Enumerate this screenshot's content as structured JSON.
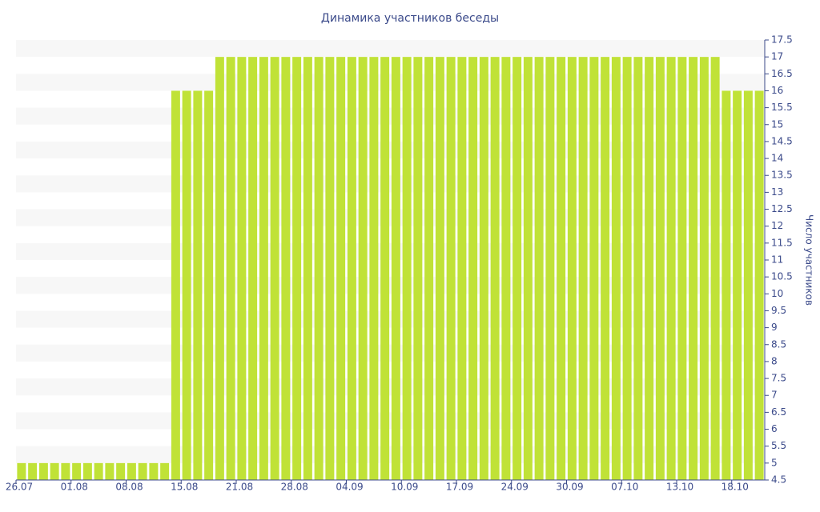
{
  "chart_data": {
    "type": "bar",
    "title": "Динамика участников беседы",
    "y_label": "Число участников",
    "categories": [
      "26.07",
      null,
      null,
      null,
      null,
      "01.08",
      null,
      null,
      null,
      null,
      "08.08",
      null,
      null,
      null,
      null,
      "15.08",
      null,
      null,
      null,
      null,
      "21.08",
      null,
      null,
      null,
      null,
      "28.08",
      null,
      null,
      null,
      null,
      "04.09",
      null,
      null,
      null,
      null,
      "10.09",
      null,
      null,
      null,
      null,
      "17.09",
      null,
      null,
      null,
      null,
      "24.09",
      null,
      null,
      null,
      null,
      "30.09",
      null,
      null,
      null,
      null,
      "07.10",
      null,
      null,
      null,
      null,
      "13.10",
      null,
      null,
      null,
      null,
      "18.10",
      null,
      null
    ],
    "values": [
      5,
      5,
      5,
      5,
      5,
      5,
      5,
      5,
      5,
      5,
      5,
      5,
      5,
      5,
      16,
      16,
      16,
      16,
      17,
      17,
      17,
      17,
      17,
      17,
      17,
      17,
      17,
      17,
      17,
      17,
      17,
      17,
      17,
      17,
      17,
      17,
      17,
      17,
      17,
      17,
      17,
      17,
      17,
      17,
      17,
      17,
      17,
      17,
      17,
      17,
      17,
      17,
      17,
      17,
      17,
      17,
      17,
      17,
      17,
      17,
      17,
      17,
      17,
      17,
      16,
      16,
      16,
      16
    ],
    "color": "#c0e237",
    "ylim": [
      4.5,
      17.5
    ],
    "yticks": [
      4.5,
      5,
      5.5,
      6,
      6.5,
      7,
      7.5,
      8,
      8.5,
      9,
      9.5,
      10,
      10.5,
      11,
      11.5,
      12,
      12.5,
      13,
      13.5,
      14,
      14.5,
      15,
      15.5,
      16,
      16.5,
      17,
      17.5
    ],
    "grid": true,
    "y_axis_side": "right"
  }
}
